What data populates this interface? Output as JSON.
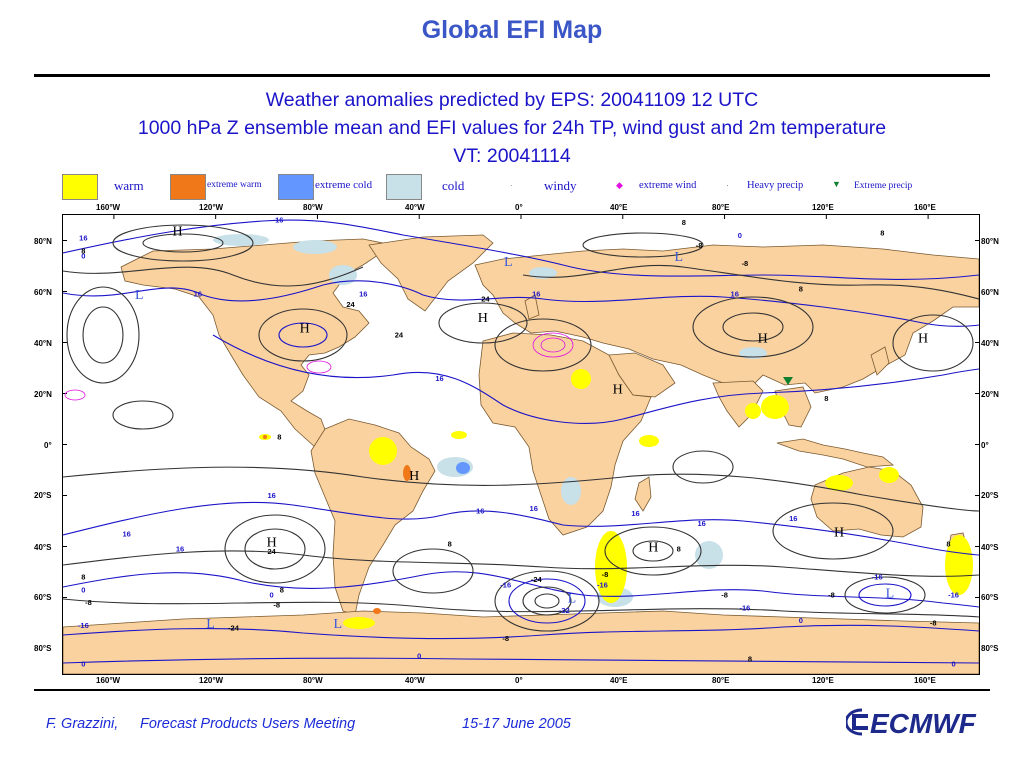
{
  "slide": {
    "title": "Global EFI Map",
    "heading_line1": "Weather anomalies predicted by EPS: 20041109 12 UTC",
    "heading_line2": "1000 hPa Z ensemble mean and EFI values for 24h TP, wind gust and 2m temperature",
    "heading_line3": "VT: 20041114"
  },
  "legend": {
    "warm": "warm",
    "extreme_warm": "extreme warm",
    "extreme_cold": "extreme cold",
    "cold": "cold",
    "windy": "windy",
    "extreme_wind": "extreme wind",
    "heavy_precip": "Heavy precip",
    "extreme_precip": "Extreme precip",
    "colors": {
      "warm": "#ffff00",
      "extreme_warm": "#f07818",
      "extreme_cold": "#6496ff",
      "cold": "#c8e0e8",
      "extreme_wind": "#e010e0",
      "extreme_precip": "#108030",
      "land": "#fad2a0"
    }
  },
  "map": {
    "lon_labels": [
      "160°W",
      "120°W",
      "80°W",
      "40°W",
      "0°",
      "40°E",
      "80°E",
      "120°E",
      "160°E"
    ],
    "lat_labels": [
      "80°N",
      "60°N",
      "40°N",
      "20°N",
      "0°",
      "20°S",
      "40°S",
      "60°S",
      "80°S"
    ],
    "highs_lows": [
      {
        "t": "H",
        "lon": -135,
        "lat": 82
      },
      {
        "t": "H",
        "lon": -85,
        "lat": 44
      },
      {
        "t": "H",
        "lon": -15,
        "lat": 48
      },
      {
        "t": "H",
        "lon": 95,
        "lat": 40
      },
      {
        "t": "H",
        "lon": 158,
        "lat": 40
      },
      {
        "t": "H",
        "lon": 38,
        "lat": 20
      },
      {
        "t": "H",
        "lon": -42,
        "lat": -14
      },
      {
        "t": "H",
        "lon": -98,
        "lat": -40
      },
      {
        "t": "H",
        "lon": 52,
        "lat": -42
      },
      {
        "t": "H",
        "lon": 125,
        "lat": -36
      },
      {
        "t": "L",
        "lon": -150,
        "lat": 57
      },
      {
        "t": "L",
        "lon": -5,
        "lat": 70
      },
      {
        "t": "L",
        "lon": 62,
        "lat": 72
      },
      {
        "t": "L",
        "lon": -122,
        "lat": -72
      },
      {
        "t": "L",
        "lon": -72,
        "lat": -72
      },
      {
        "t": "L",
        "lon": 20,
        "lat": -62
      },
      {
        "t": "L",
        "lon": 145,
        "lat": -60
      }
    ],
    "contour_labels": [
      {
        "v": "16",
        "lon": -95,
        "lat": 87
      },
      {
        "v": "16",
        "lon": -172,
        "lat": 80
      },
      {
        "v": "8",
        "lon": -172,
        "lat": 75
      },
      {
        "v": "0",
        "lon": -172,
        "lat": 73
      },
      {
        "v": "16",
        "lon": -127,
        "lat": 58
      },
      {
        "v": "16",
        "lon": -62,
        "lat": 58
      },
      {
        "v": "24",
        "lon": -67,
        "lat": 54
      },
      {
        "v": "24",
        "lon": -48,
        "lat": 42
      },
      {
        "v": "24",
        "lon": -14,
        "lat": 56
      },
      {
        "v": "16",
        "lon": 6,
        "lat": 58
      },
      {
        "v": "16",
        "lon": 84,
        "lat": 58
      },
      {
        "v": "8",
        "lon": 110,
        "lat": 60
      },
      {
        "v": "8",
        "lon": 64,
        "lat": 86
      },
      {
        "v": "0",
        "lon": 86,
        "lat": 81
      },
      {
        "v": "8",
        "lon": 142,
        "lat": 82
      },
      {
        "v": "-8",
        "lon": 70,
        "lat": 77
      },
      {
        "v": "-8",
        "lon": 88,
        "lat": 70
      },
      {
        "v": "16",
        "lon": -32,
        "lat": 25
      },
      {
        "v": "8",
        "lon": 120,
        "lat": 17
      },
      {
        "v": "8",
        "lon": -95,
        "lat": 2
      },
      {
        "v": "16",
        "lon": -98,
        "lat": -21
      },
      {
        "v": "16",
        "lon": -16,
        "lat": -27
      },
      {
        "v": "16",
        "lon": 5,
        "lat": -26
      },
      {
        "v": "16",
        "lon": 45,
        "lat": -28
      },
      {
        "v": "16",
        "lon": 71,
        "lat": -32
      },
      {
        "v": "16",
        "lon": 107,
        "lat": -30
      },
      {
        "v": "16",
        "lon": -155,
        "lat": -36
      },
      {
        "v": "16",
        "lon": -134,
        "lat": -42
      },
      {
        "v": "24",
        "lon": -98,
        "lat": -43
      },
      {
        "v": "8",
        "lon": -28,
        "lat": -40
      },
      {
        "v": "8",
        "lon": -172,
        "lat": -53
      },
      {
        "v": "0",
        "lon": -172,
        "lat": -58
      },
      {
        "v": "-8",
        "lon": -170,
        "lat": -63
      },
      {
        "v": "-16",
        "lon": -172,
        "lat": -72
      },
      {
        "v": "-24",
        "lon": -113,
        "lat": -73
      },
      {
        "v": "-24",
        "lon": 6,
        "lat": -54
      },
      {
        "v": "-32",
        "lon": 17,
        "lat": -66
      },
      {
        "v": "-16",
        "lon": -6,
        "lat": -56
      },
      {
        "v": "-8",
        "lon": 33,
        "lat": -52
      },
      {
        "v": "-16",
        "lon": 32,
        "lat": -56
      },
      {
        "v": "-16",
        "lon": 88,
        "lat": -65
      },
      {
        "v": "-8",
        "lon": 80,
        "lat": -60
      },
      {
        "v": "8",
        "lon": -94,
        "lat": -58
      },
      {
        "v": "-8",
        "lon": -96,
        "lat": -64
      },
      {
        "v": "0",
        "lon": -98,
        "lat": -60
      },
      {
        "v": "-16",
        "lon": 140,
        "lat": -53
      },
      {
        "v": "-8",
        "lon": 122,
        "lat": -60
      },
      {
        "v": "0",
        "lon": 110,
        "lat": -70
      },
      {
        "v": "-8",
        "lon": 162,
        "lat": -71
      },
      {
        "v": "8",
        "lon": 90,
        "lat": -85
      },
      {
        "v": "0",
        "lon": -40,
        "lat": -84
      },
      {
        "v": "-8",
        "lon": -6,
        "lat": -77
      },
      {
        "v": "0",
        "lon": -172,
        "lat": -87
      },
      {
        "v": "0",
        "lon": 170,
        "lat": -87
      },
      {
        "v": "8",
        "lon": 168,
        "lat": -40
      },
      {
        "v": "-16",
        "lon": 170,
        "lat": -60
      },
      {
        "v": "8",
        "lon": 62,
        "lat": -42
      }
    ]
  },
  "footer": {
    "author": "F. Grazzini,",
    "meeting": "Forecast Products Users Meeting",
    "dates": "15-17 June 2005",
    "logo_text": "ECMWF"
  }
}
